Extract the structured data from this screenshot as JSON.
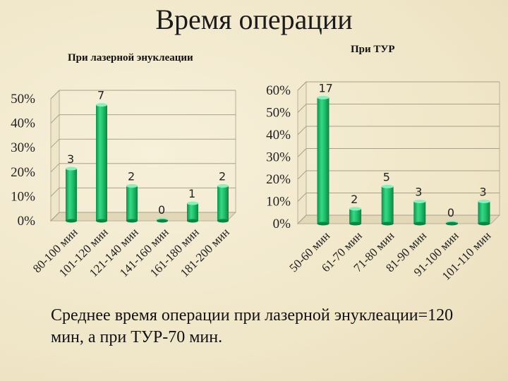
{
  "slide": {
    "title": "Время операции",
    "footer": "Среднее время операции при лазерной энуклеации=120 мин,  а при ТУР-70 мин."
  },
  "colors": {
    "bar": "#1fc46e",
    "bar_dark": "#0e8f4b",
    "bar_light": "#7fe8b0"
  },
  "chart_data": [
    {
      "type": "bar",
      "title": "При лазерной энуклеации",
      "categories": [
        "80-100 мин",
        "101-120 мин",
        "121-140 мин",
        "141-160 мин",
        "161-180 мин",
        "181-200 мин"
      ],
      "values": [
        21.4,
        47.5,
        14.3,
        0.5,
        7.2,
        14.3
      ],
      "data_labels": [
        "3",
        "7",
        "2",
        "0",
        "1",
        "2"
      ],
      "yticks": [
        "0%",
        "10%",
        "20%",
        "30%",
        "40%",
        "50%"
      ],
      "ylim": [
        0,
        50
      ],
      "xlabel": "",
      "ylabel": ""
    },
    {
      "type": "bar",
      "title": "При ТУР",
      "categories": [
        "50-60 мин",
        "61-70 мин",
        "71-80 мин",
        "81-90 мин",
        "91-100 мин",
        "101-110 мин"
      ],
      "values": [
        56.7,
        6.7,
        16.7,
        10.0,
        0.5,
        10.0
      ],
      "data_labels": [
        "17",
        "2",
        "5",
        "3",
        "0",
        "3"
      ],
      "yticks": [
        "0%",
        "10%",
        "20%",
        "30%",
        "40%",
        "50%",
        "60%"
      ],
      "ylim": [
        0,
        60
      ],
      "xlabel": "",
      "ylabel": ""
    }
  ]
}
